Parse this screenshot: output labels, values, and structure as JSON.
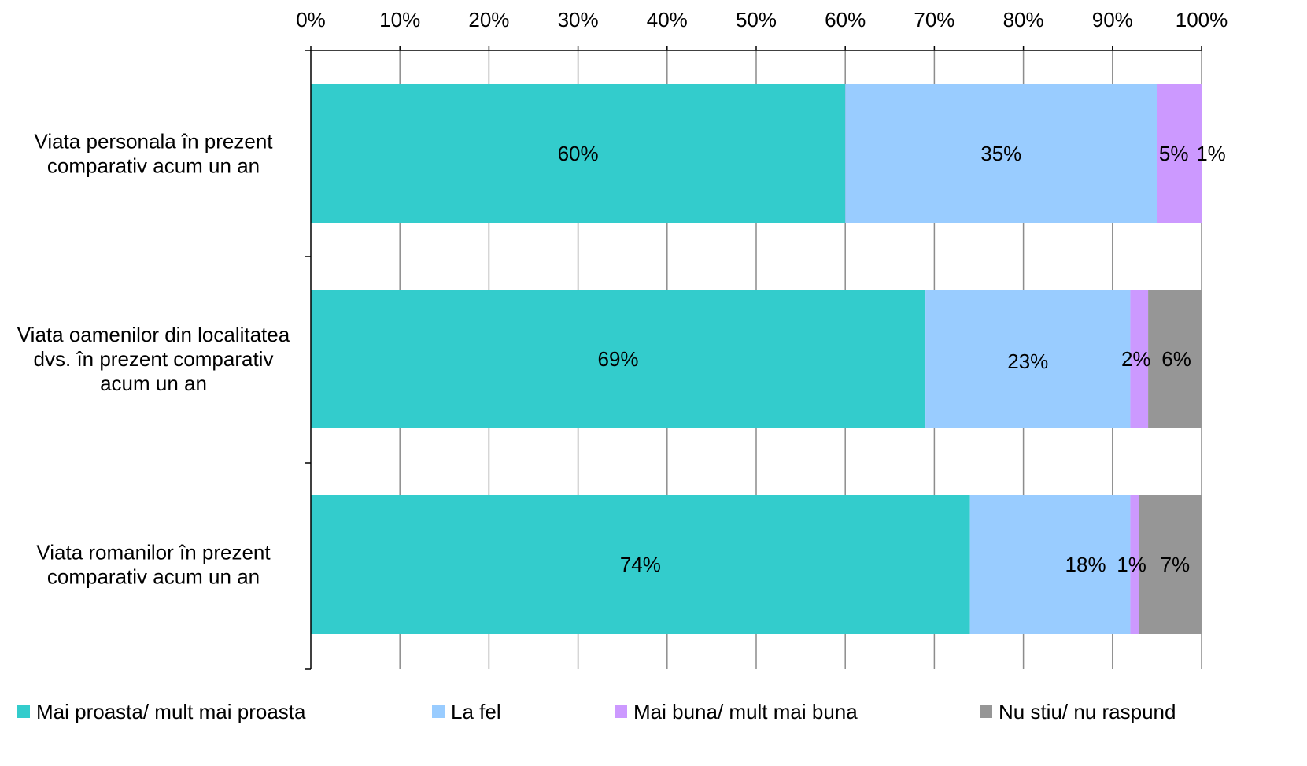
{
  "chart_data": {
    "type": "bar",
    "orientation": "horizontal",
    "stacked": true,
    "percent_stacked": true,
    "title": "",
    "xlabel": "",
    "ylabel": "",
    "xlim": [
      0,
      100
    ],
    "x_ticks": [
      "0%",
      "10%",
      "20%",
      "30%",
      "40%",
      "50%",
      "60%",
      "70%",
      "80%",
      "90%",
      "100%"
    ],
    "x_axis_position": "top",
    "grid": "vertical",
    "legend_position": "bottom",
    "categories": [
      "Viata personala în prezent comparativ acum un an",
      "Viata oamenilor din localitatea dvs. în prezent comparativ acum un an",
      "Viata romanilor în prezent comparativ acum un an"
    ],
    "category_lines": [
      [
        "Viata personala în prezent",
        "comparativ acum un an"
      ],
      [
        "Viata oamenilor din localitatea",
        "dvs. în prezent comparativ",
        "acum un an"
      ],
      [
        "Viata romanilor în prezent",
        "comparativ acum un an"
      ]
    ],
    "series": [
      {
        "name": "Mai proasta/ mult mai proasta",
        "color": "#33CCCC",
        "values": [
          60,
          69,
          74
        ],
        "labels": [
          "60%",
          "69%",
          "74%"
        ]
      },
      {
        "name": "La fel",
        "color": "#99CCFF",
        "values": [
          35,
          23,
          18
        ],
        "labels": [
          "35%",
          "23%",
          "18%"
        ]
      },
      {
        "name": "Mai buna/ mult mai buna",
        "color": "#CC99FF",
        "values": [
          5,
          2,
          1
        ],
        "labels": [
          "5%",
          "2%",
          "1%"
        ]
      },
      {
        "name": "Nu stiu/ nu raspund",
        "color": "#969696",
        "values": [
          1,
          6,
          7
        ],
        "labels": [
          "1%",
          "6%",
          "7%"
        ]
      }
    ]
  }
}
